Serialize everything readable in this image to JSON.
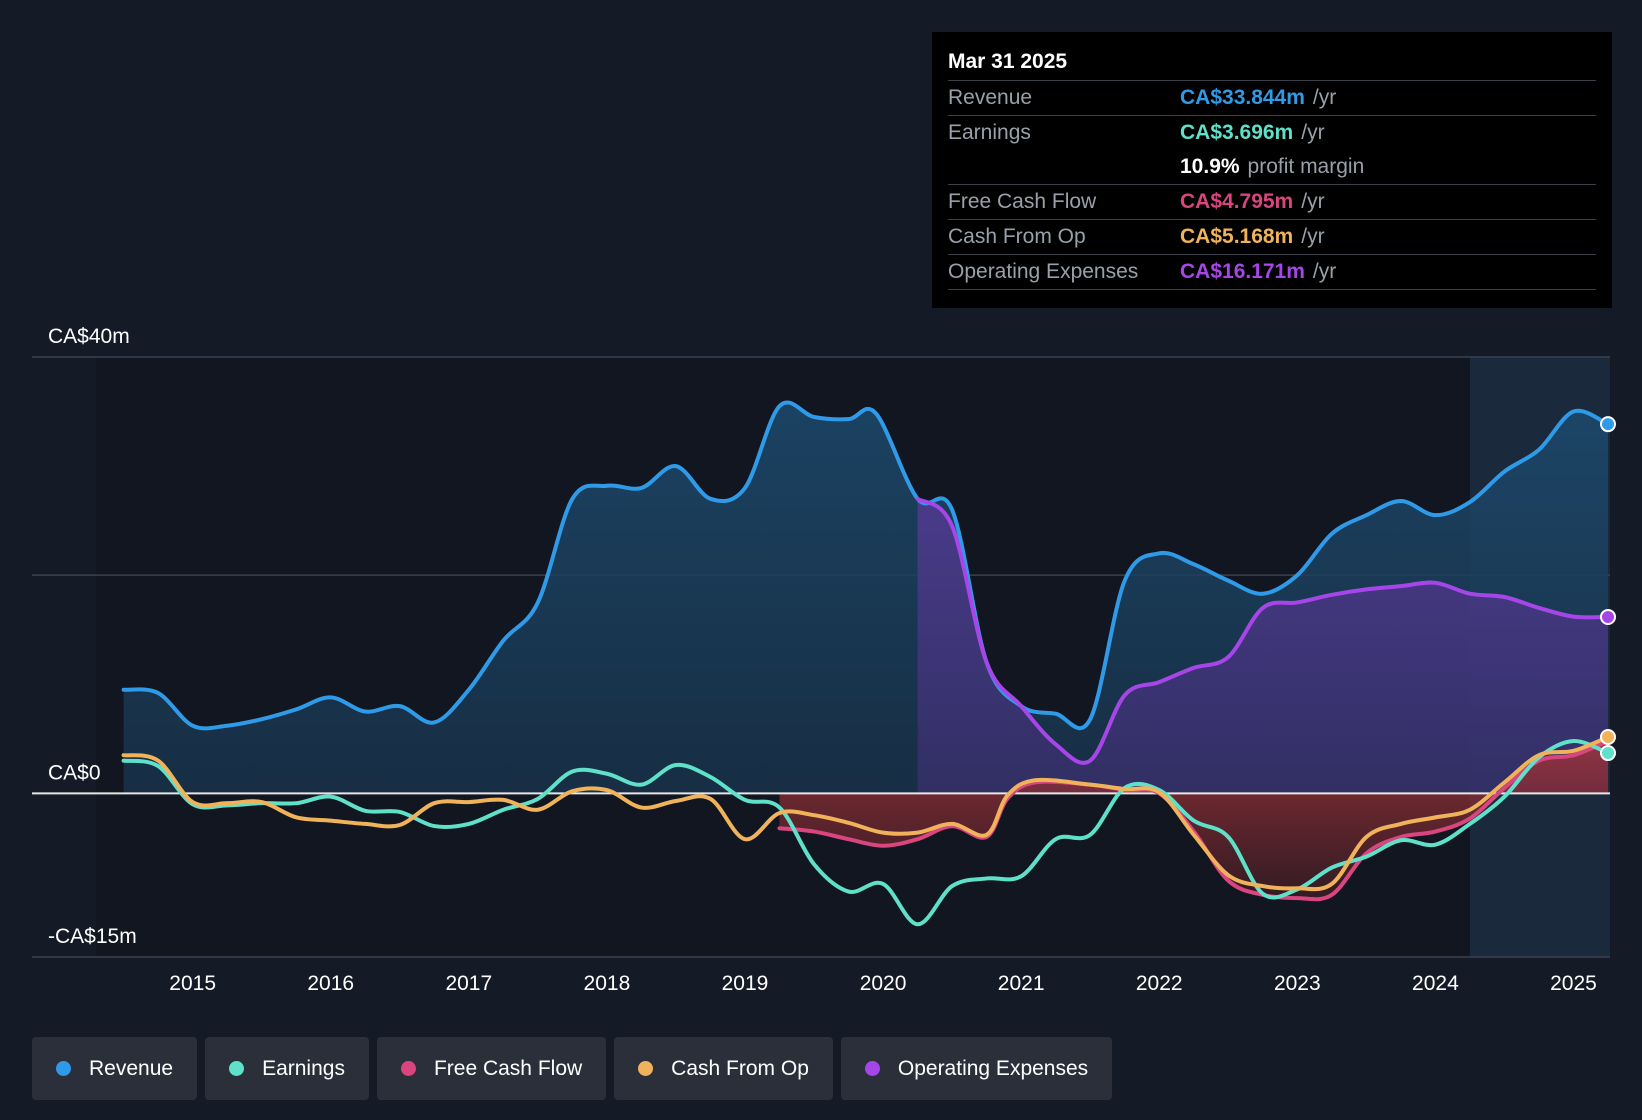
{
  "tooltip": {
    "date": "Mar 31 2025",
    "rows": [
      {
        "label": "Revenue",
        "value": "CA$33.844m",
        "unit": "/yr",
        "color": "#2f9be8"
      },
      {
        "label": "Earnings",
        "value": "CA$3.696m",
        "unit": "/yr",
        "color": "#5fe0c9"
      },
      {
        "label": "",
        "value": "10.9%",
        "unit": "profit margin",
        "color": "#ffffff"
      },
      {
        "label": "Free Cash Flow",
        "value": "CA$4.795m",
        "unit": "/yr",
        "color": "#d9457f"
      },
      {
        "label": "Cash From Op",
        "value": "CA$5.168m",
        "unit": "/yr",
        "color": "#f0b35a"
      },
      {
        "label": "Operating Expenses",
        "value": "CA$16.171m",
        "unit": "/yr",
        "color": "#a646e8"
      }
    ]
  },
  "legend": [
    {
      "label": "Revenue",
      "color": "#2f9be8"
    },
    {
      "label": "Earnings",
      "color": "#5fe0c9"
    },
    {
      "label": "Free Cash Flow",
      "color": "#d9457f"
    },
    {
      "label": "Cash From Op",
      "color": "#f0b35a"
    },
    {
      "label": "Operating Expenses",
      "color": "#a646e8"
    }
  ],
  "chart_data": {
    "type": "line",
    "title": "",
    "xlabel": "",
    "ylabel": "",
    "ylim": [
      -15,
      40
    ],
    "xlim": [
      2014.3,
      2025.25
    ],
    "y_tick_labels": [
      {
        "value": 40,
        "label": "CA$40m"
      },
      {
        "value": 0,
        "label": "CA$0"
      },
      {
        "value": -15,
        "label": "-CA$15m"
      }
    ],
    "x_ticks": [
      2015,
      2016,
      2017,
      2018,
      2019,
      2020,
      2021,
      2022,
      2023,
      2024,
      2025
    ],
    "x_tick_labels": [
      "2015",
      "2016",
      "2017",
      "2018",
      "2019",
      "2020",
      "2021",
      "2022",
      "2023",
      "2024",
      "2025"
    ],
    "forecast_start": 2024.25,
    "series": [
      {
        "name": "Revenue",
        "color": "#2f9be8",
        "fill": true,
        "points": [
          [
            2014.5,
            9.5
          ],
          [
            2014.75,
            9.2
          ],
          [
            2015.0,
            6.2
          ],
          [
            2015.25,
            6.2
          ],
          [
            2015.5,
            6.8
          ],
          [
            2015.75,
            7.7
          ],
          [
            2016.0,
            8.8
          ],
          [
            2016.25,
            7.5
          ],
          [
            2016.5,
            8.0
          ],
          [
            2016.75,
            6.5
          ],
          [
            2017.0,
            9.5
          ],
          [
            2017.25,
            14.0
          ],
          [
            2017.5,
            17.5
          ],
          [
            2017.75,
            27.0
          ],
          [
            2018.0,
            28.2
          ],
          [
            2018.25,
            28.0
          ],
          [
            2018.5,
            30.0
          ],
          [
            2018.75,
            27.0
          ],
          [
            2019.0,
            28.0
          ],
          [
            2019.25,
            35.5
          ],
          [
            2019.5,
            34.5
          ],
          [
            2019.75,
            34.3
          ],
          [
            2019.95,
            34.8
          ],
          [
            2020.25,
            27.0
          ],
          [
            2020.5,
            26.0
          ],
          [
            2020.75,
            12.0
          ],
          [
            2021.0,
            8.0
          ],
          [
            2021.25,
            7.3
          ],
          [
            2021.5,
            6.8
          ],
          [
            2021.75,
            19.5
          ],
          [
            2022.0,
            22.0
          ],
          [
            2022.25,
            21.0
          ],
          [
            2022.5,
            19.5
          ],
          [
            2022.75,
            18.3
          ],
          [
            2023.0,
            20.0
          ],
          [
            2023.25,
            23.8
          ],
          [
            2023.5,
            25.5
          ],
          [
            2023.75,
            26.8
          ],
          [
            2024.0,
            25.5
          ],
          [
            2024.25,
            26.7
          ],
          [
            2024.5,
            29.5
          ],
          [
            2024.75,
            31.5
          ],
          [
            2025.0,
            35.0
          ],
          [
            2025.25,
            33.844
          ]
        ]
      },
      {
        "name": "Operating Expenses",
        "color": "#a646e8",
        "fill": true,
        "points": [
          [
            2020.25,
            27.0
          ],
          [
            2020.5,
            24.5
          ],
          [
            2020.75,
            12.0
          ],
          [
            2021.0,
            8.0
          ],
          [
            2021.25,
            4.5
          ],
          [
            2021.5,
            3.0
          ],
          [
            2021.75,
            9.0
          ],
          [
            2022.0,
            10.2
          ],
          [
            2022.25,
            11.5
          ],
          [
            2022.5,
            12.5
          ],
          [
            2022.75,
            17.0
          ],
          [
            2023.0,
            17.5
          ],
          [
            2023.25,
            18.2
          ],
          [
            2023.5,
            18.7
          ],
          [
            2023.75,
            19.0
          ],
          [
            2024.0,
            19.3
          ],
          [
            2024.25,
            18.3
          ],
          [
            2024.5,
            18.0
          ],
          [
            2024.75,
            17.0
          ],
          [
            2025.0,
            16.2
          ],
          [
            2025.25,
            16.171
          ]
        ]
      },
      {
        "name": "Free Cash Flow",
        "color": "#d9457f",
        "fill": true,
        "points": [
          [
            2019.25,
            -3.2
          ],
          [
            2019.5,
            -3.5
          ],
          [
            2019.75,
            -4.2
          ],
          [
            2020.0,
            -4.8
          ],
          [
            2020.25,
            -4.2
          ],
          [
            2020.5,
            -3.0
          ],
          [
            2020.75,
            -4.0
          ],
          [
            2020.9,
            -0.5
          ],
          [
            2021.1,
            1.0
          ],
          [
            2021.5,
            0.8
          ],
          [
            2021.75,
            0.3
          ],
          [
            2022.0,
            0.0
          ],
          [
            2022.25,
            -3.5
          ],
          [
            2022.5,
            -8.0
          ],
          [
            2022.75,
            -9.3
          ],
          [
            2023.0,
            -9.6
          ],
          [
            2023.25,
            -9.3
          ],
          [
            2023.5,
            -5.5
          ],
          [
            2023.75,
            -4.0
          ],
          [
            2024.0,
            -3.5
          ],
          [
            2024.25,
            -2.3
          ],
          [
            2024.5,
            0.5
          ],
          [
            2024.75,
            3.0
          ],
          [
            2025.0,
            3.5
          ],
          [
            2025.25,
            4.795
          ]
        ]
      },
      {
        "name": "Earnings",
        "color": "#5fe0c9",
        "fill": false,
        "points": [
          [
            2014.5,
            3.0
          ],
          [
            2014.75,
            2.5
          ],
          [
            2015.0,
            -1.0
          ],
          [
            2015.25,
            -1.1
          ],
          [
            2015.5,
            -0.9
          ],
          [
            2015.75,
            -0.9
          ],
          [
            2016.0,
            -0.3
          ],
          [
            2016.25,
            -1.6
          ],
          [
            2016.5,
            -1.7
          ],
          [
            2016.75,
            -3.0
          ],
          [
            2017.0,
            -2.8
          ],
          [
            2017.25,
            -1.5
          ],
          [
            2017.5,
            -0.5
          ],
          [
            2017.75,
            2.0
          ],
          [
            2018.0,
            1.8
          ],
          [
            2018.25,
            0.8
          ],
          [
            2018.5,
            2.6
          ],
          [
            2018.75,
            1.5
          ],
          [
            2019.0,
            -0.6
          ],
          [
            2019.25,
            -1.3
          ],
          [
            2019.5,
            -6.5
          ],
          [
            2019.75,
            -9.0
          ],
          [
            2020.0,
            -8.3
          ],
          [
            2020.25,
            -12.0
          ],
          [
            2020.5,
            -8.5
          ],
          [
            2020.75,
            -7.8
          ],
          [
            2021.0,
            -7.6
          ],
          [
            2021.25,
            -4.2
          ],
          [
            2021.5,
            -3.8
          ],
          [
            2021.75,
            0.5
          ],
          [
            2022.0,
            0.3
          ],
          [
            2022.25,
            -2.5
          ],
          [
            2022.5,
            -4.0
          ],
          [
            2022.75,
            -9.2
          ],
          [
            2023.0,
            -8.8
          ],
          [
            2023.25,
            -6.8
          ],
          [
            2023.5,
            -5.8
          ],
          [
            2023.75,
            -4.3
          ],
          [
            2024.0,
            -4.7
          ],
          [
            2024.25,
            -2.8
          ],
          [
            2024.5,
            -0.3
          ],
          [
            2024.75,
            3.3
          ],
          [
            2025.0,
            4.8
          ],
          [
            2025.25,
            3.696
          ]
        ]
      },
      {
        "name": "Cash From Op",
        "color": "#f0b35a",
        "fill": false,
        "points": [
          [
            2014.5,
            3.5
          ],
          [
            2014.75,
            3.0
          ],
          [
            2015.0,
            -0.8
          ],
          [
            2015.25,
            -0.9
          ],
          [
            2015.5,
            -0.8
          ],
          [
            2015.75,
            -2.2
          ],
          [
            2016.0,
            -2.5
          ],
          [
            2016.25,
            -2.8
          ],
          [
            2016.5,
            -2.9
          ],
          [
            2016.75,
            -0.9
          ],
          [
            2017.0,
            -0.8
          ],
          [
            2017.25,
            -0.6
          ],
          [
            2017.5,
            -1.5
          ],
          [
            2017.75,
            0.2
          ],
          [
            2018.0,
            0.3
          ],
          [
            2018.25,
            -1.3
          ],
          [
            2018.5,
            -0.7
          ],
          [
            2018.75,
            -0.5
          ],
          [
            2019.0,
            -4.2
          ],
          [
            2019.25,
            -1.8
          ],
          [
            2019.5,
            -2.0
          ],
          [
            2019.75,
            -2.7
          ],
          [
            2020.0,
            -3.6
          ],
          [
            2020.25,
            -3.6
          ],
          [
            2020.5,
            -2.8
          ],
          [
            2020.75,
            -3.8
          ],
          [
            2020.9,
            -0.2
          ],
          [
            2021.1,
            1.2
          ],
          [
            2021.5,
            0.8
          ],
          [
            2021.75,
            0.4
          ],
          [
            2022.0,
            0.1
          ],
          [
            2022.25,
            -3.8
          ],
          [
            2022.5,
            -7.5
          ],
          [
            2022.75,
            -8.5
          ],
          [
            2023.0,
            -8.7
          ],
          [
            2023.25,
            -8.3
          ],
          [
            2023.5,
            -4.0
          ],
          [
            2023.75,
            -2.8
          ],
          [
            2024.0,
            -2.2
          ],
          [
            2024.25,
            -1.5
          ],
          [
            2024.5,
            1.0
          ],
          [
            2024.75,
            3.5
          ],
          [
            2025.0,
            3.9
          ],
          [
            2025.25,
            5.168
          ]
        ]
      }
    ]
  }
}
